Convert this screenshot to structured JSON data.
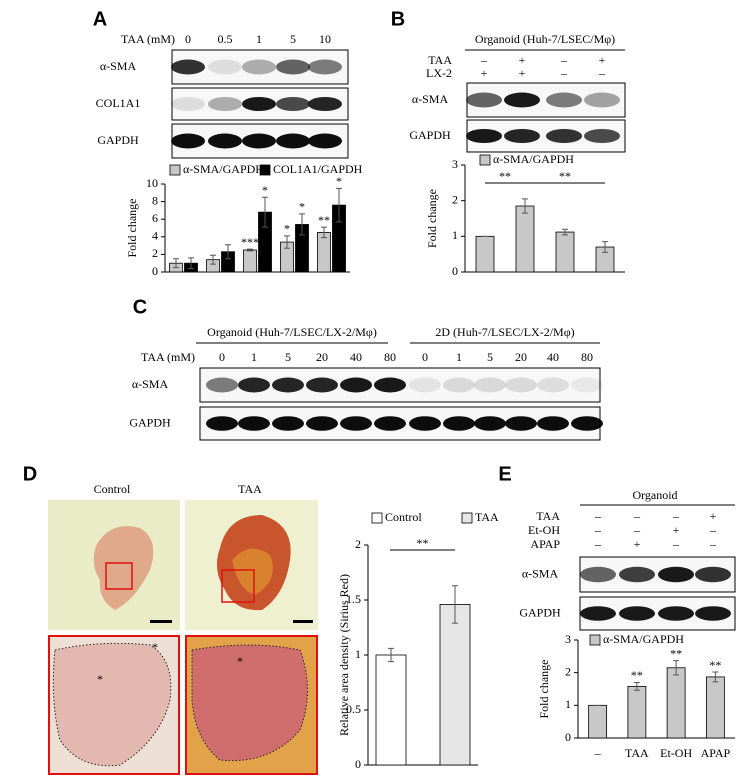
{
  "panels": {
    "A": {
      "label": "A",
      "header": "TAA (mM)",
      "lanes": [
        "0",
        "0.5",
        "1",
        "5",
        "10"
      ],
      "rows": [
        "α-SMA",
        "COL1A1",
        "GAPDH"
      ]
    },
    "B": {
      "label": "B",
      "header": "Organoid (Huh-7/LSEC/Mφ)",
      "conditions": [
        {
          "name": "TAA",
          "signs": [
            "–",
            "+",
            "–",
            "+"
          ]
        },
        {
          "name": "LX-2",
          "signs": [
            "+",
            "+",
            "–",
            "–"
          ]
        }
      ],
      "rows": [
        "α-SMA",
        "GAPDH"
      ]
    },
    "C": {
      "label": "C",
      "groups": [
        "Organoid (Huh-7/LSEC/LX-2/Mφ)",
        "2D (Huh-7/LSEC/LX-2/Mφ)"
      ],
      "header": "TAA (mM)",
      "lanes": [
        "0",
        "1",
        "5",
        "20",
        "40",
        "80",
        "0",
        "1",
        "5",
        "20",
        "40",
        "80"
      ],
      "rows": [
        "α-SMA",
        "GAPDH"
      ]
    },
    "D": {
      "label": "D",
      "images": [
        "Control",
        "TAA"
      ],
      "marks": [
        "*",
        "*",
        "*"
      ]
    },
    "E": {
      "label": "E",
      "header": "Organoid",
      "conditions": [
        {
          "name": "TAA",
          "signs": [
            "–",
            "–",
            "–",
            "+"
          ]
        },
        {
          "name": "Et-OH",
          "signs": [
            "–",
            "–",
            "+",
            "–"
          ]
        },
        {
          "name": "APAP",
          "signs": [
            "–",
            "+",
            "–",
            "–"
          ]
        }
      ],
      "rows": [
        "α-SMA",
        "GAPDH"
      ]
    }
  },
  "chart_data": [
    {
      "type": "bar",
      "y_label": "Fold change",
      "categories": [
        null,
        null,
        null,
        null,
        null
      ],
      "series": [
        {
          "name": "α-SMA/GAPDH",
          "color": "#c8c8c8",
          "values": [
            1,
            1.4,
            2.5,
            3.4,
            4.5
          ],
          "errors": [
            0.5,
            0.5,
            0.1,
            0.7,
            0.6
          ],
          "annotations": [
            null,
            null,
            "***",
            "*",
            "**"
          ]
        },
        {
          "name": "COL1A1/GAPDH",
          "color": "#000000",
          "values": [
            1,
            2.3,
            6.8,
            5.4,
            7.6
          ],
          "errors": [
            0.6,
            0.8,
            1.7,
            1.2,
            1.9
          ],
          "annotations": [
            null,
            null,
            "*",
            "*",
            "*"
          ]
        }
      ],
      "ylim": [
        0,
        10
      ],
      "yticks": [
        0,
        2,
        4,
        6,
        8,
        10
      ]
    },
    {
      "type": "bar",
      "y_label": "Fold change",
      "categories": [
        null,
        null,
        null,
        null
      ],
      "series": [
        {
          "name": "α-SMA/GAPDH",
          "color": "#c8c8c8",
          "values": [
            1,
            1.85,
            1.12,
            0.7
          ],
          "errors": [
            0,
            0.2,
            0.08,
            0.15
          ]
        }
      ],
      "annotations": [
        "**",
        "**"
      ],
      "ylim": [
        0,
        3
      ],
      "yticks": [
        0,
        1,
        2,
        3
      ]
    },
    {
      "type": "bar",
      "y_label": "Relative area density (Sirius Red)",
      "categories": [
        null
      ],
      "series": [
        {
          "name": "Control",
          "color": "#ffffff",
          "values": [
            1
          ],
          "errors": [
            0.06
          ]
        },
        {
          "name": "TAA",
          "color": "#e6e6e6",
          "values": [
            1.46
          ],
          "errors": [
            0.17
          ]
        }
      ],
      "annotations": [
        "**"
      ],
      "ylim": [
        0,
        2
      ],
      "yticks": [
        0,
        0.5,
        1,
        1.5,
        2
      ]
    },
    {
      "type": "bar",
      "y_label": "Fold change",
      "categories": [
        "–",
        "TAA",
        "Et-OH",
        "APAP"
      ],
      "series": [
        {
          "name": "α-SMA/GAPDH",
          "color": "#c8c8c8",
          "values": [
            1,
            1.58,
            2.15,
            1.87
          ],
          "errors": [
            0,
            0.12,
            0.22,
            0.15
          ],
          "annotations": [
            null,
            "**",
            "**",
            "**"
          ]
        }
      ],
      "ylim": [
        0,
        3
      ],
      "yticks": [
        0,
        1,
        2,
        3
      ]
    }
  ]
}
